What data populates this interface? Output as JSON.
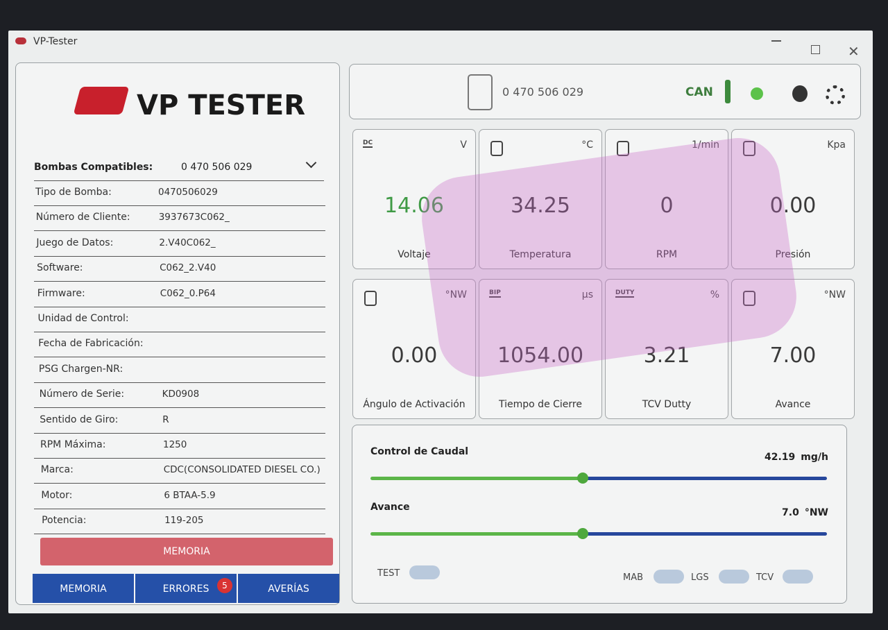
{
  "window": {
    "title": "VP-Tester"
  },
  "brand": "VP TESTER",
  "pump_info": {
    "label": "Bombas Compatibles:",
    "value": "0 470 506 029",
    "rows": [
      {
        "label": "Tipo de Bomba:",
        "value": "0470506029"
      },
      {
        "label": "Número de Cliente:",
        "value": "3937673C062_"
      },
      {
        "label": "Juego de Datos:",
        "value": "2.V40C062_"
      },
      {
        "label": "Software:",
        "value": "C062_2.V40"
      },
      {
        "label": "Firmware:",
        "value": "C062_0.P64"
      },
      {
        "label": "Unidad de Control:"
      },
      {
        "label": "Fecha de Fabricación:"
      },
      {
        "label": "PSG Chargen-NR:"
      },
      {
        "label": "Número de Serie:",
        "value": "KD0908"
      },
      {
        "label": "Sentido de Giro:",
        "value": "R"
      },
      {
        "label": "RPM Máxima:",
        "value": "1250"
      },
      {
        "label": "Marca:",
        "value": "CDC(CONSOLIDATED DIESEL CO.)"
      },
      {
        "label": "Motor:",
        "value": "6 BTAA-5.9"
      },
      {
        "label": "Potencia:",
        "value": "119-205"
      }
    ]
  },
  "memory_button": "MEMORIA",
  "tabs": [
    {
      "label": "MEMORIA"
    },
    {
      "label": "ERRORES",
      "badge": 5
    },
    {
      "label": "AVERÍAS"
    }
  ],
  "header": {
    "pump_number": "0 470 506 029",
    "connection": "CAN"
  },
  "gauges": [
    {
      "icon_text": "DC",
      "unit": "V",
      "value": "14.06",
      "label": "Voltaje",
      "color": "#3f9a45"
    },
    {
      "unit": "°C",
      "value": "34.25",
      "label": "Temperatura",
      "color": "#3a3a3a"
    },
    {
      "unit": "1/min",
      "value": "0",
      "label": "RPM",
      "color": "#3a3a3a"
    },
    {
      "unit": "Kpa",
      "value": "0.00",
      "label": "Presión",
      "color": "#3a3a3a"
    },
    {
      "unit": "°NW",
      "value": "0.00",
      "label": "Ángulo de Activación",
      "color": "#3a3a3a"
    },
    {
      "icon_text": "BIP",
      "unit": "µs",
      "value": "1054.00",
      "label": "Tiempo de Cierre",
      "color": "#3a3a3a"
    },
    {
      "icon_text": "DUTY",
      "unit": "%",
      "value": "3.21",
      "label": "TCV Dutty",
      "color": "#3a3a3a"
    },
    {
      "unit": "°NW",
      "value": "7.00",
      "label": "Avance",
      "color": "#3a3a3a"
    }
  ],
  "sliders": [
    {
      "label": "Control de Caudal",
      "value": "42.19",
      "unit": "mg/h"
    },
    {
      "label": "Avance",
      "value": "7.0",
      "unit": "°NW"
    }
  ],
  "toggles": [
    "TEST",
    "MAB",
    "LGS",
    "TCV"
  ]
}
